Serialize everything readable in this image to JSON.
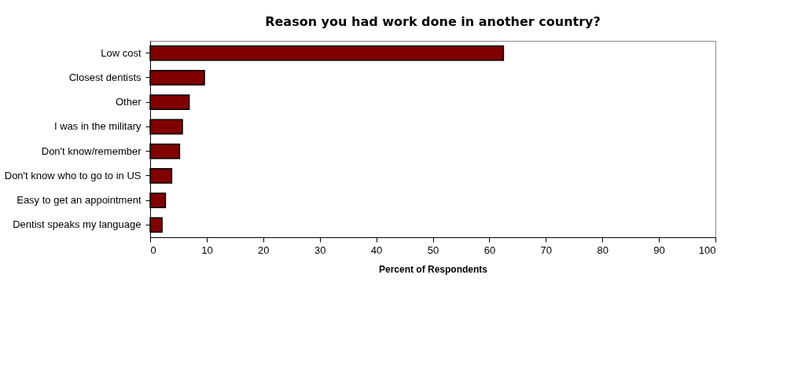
{
  "chart_data": {
    "type": "bar",
    "orientation": "horizontal",
    "title": "Reason you had work done in another country?",
    "xlabel": "Percent of Respondents",
    "categories": [
      "Low cost",
      "Closest dentists",
      "Other",
      "I was in the military",
      "Don't know/remember",
      "Don't know who to go to in US",
      "Easy to get an appointment",
      "Dentist speaks my language"
    ],
    "values": [
      62.5,
      9.6,
      6.9,
      5.7,
      5.2,
      3.8,
      2.7,
      2.1
    ],
    "color": "#800000",
    "xlim": [
      0,
      100
    ],
    "xticks": [
      0,
      10,
      20,
      30,
      40,
      50,
      60,
      70,
      80,
      90,
      100
    ]
  }
}
